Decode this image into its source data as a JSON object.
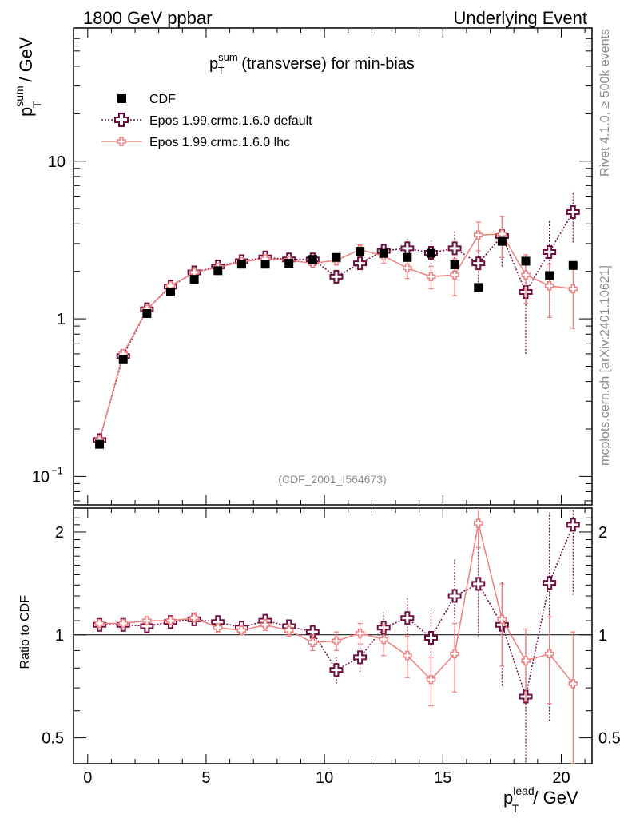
{
  "header": {
    "left": "1800 GeV ppbar",
    "right": "Underlying Event"
  },
  "side_labels": {
    "rivet": "Rivet 4.1.0, ≥ 500k events",
    "mcplots": "mcplots.cern.ch [arXiv:2401.10621]"
  },
  "chart_data": {
    "type": "scatter",
    "title_main": "p",
    "title_sup": "sum",
    "title_sub": "T",
    "title_rest": " (transverse) for min-bias",
    "analysis_label": "(CDF_2001_I564673)",
    "ylabel": {
      "main": "p",
      "sup": "sum",
      "sub": "T",
      "rest": " / GeV"
    },
    "xlabel": {
      "main": "p",
      "sup": "lead",
      "sub": "T",
      "rest": " / GeV"
    },
    "ratio_ylabel": "Ratio to CDF",
    "xlim": [
      -0.6,
      21.3
    ],
    "ylim": [
      0.066,
      70
    ],
    "ratio_ylim": [
      0.42,
      2.35
    ],
    "x_ticks": [
      "0",
      "5",
      "10",
      "15",
      "20"
    ],
    "y_ticks": [
      {
        "value": 10,
        "label": "10"
      },
      {
        "value": 1,
        "label": "1"
      },
      {
        "value": 0.1,
        "label": "10",
        "sup": "−1"
      }
    ],
    "ratio_ticks": [
      {
        "value": 2,
        "label": "2"
      },
      {
        "value": 1,
        "label": "1"
      },
      {
        "value": 0.5,
        "label": "0.5"
      }
    ],
    "legend": [
      {
        "name": "CDF",
        "style": "square"
      },
      {
        "name": "Epos 1.99.crmc.1.6.0 default",
        "style": "cross-dotted"
      },
      {
        "name": "Epos 1.99.crmc.1.6.0 lhc",
        "style": "line-cross"
      }
    ],
    "colors": {
      "data": "#000000",
      "default": "#6e0f40",
      "lhc": "#f07e7e"
    },
    "x": [
      0.5,
      1.5,
      2.5,
      3.5,
      4.5,
      5.5,
      6.5,
      7.5,
      8.5,
      9.5,
      10.5,
      11.5,
      12.5,
      13.5,
      14.5,
      15.5,
      16.5,
      17.5,
      18.5,
      19.5,
      20.5
    ],
    "cdf": [
      0.16,
      0.55,
      1.08,
      1.48,
      1.78,
      2.02,
      2.22,
      2.22,
      2.25,
      2.38,
      2.45,
      2.68,
      2.6,
      2.45,
      2.6,
      2.2,
      1.58,
      3.1,
      2.32,
      1.88,
      2.18
    ],
    "series": [
      {
        "name": "Epos 1.99.crmc.1.6.0 default",
        "values": [
          0.17,
          0.58,
          1.15,
          1.6,
          1.97,
          2.15,
          2.32,
          2.45,
          2.38,
          2.38,
          1.85,
          2.25,
          2.7,
          2.8,
          2.62,
          2.8,
          2.25,
          3.35,
          1.48,
          2.65,
          4.75
        ],
        "err_lo": [
          0.004,
          0.01,
          0.02,
          0.03,
          0.04,
          0.05,
          0.06,
          0.08,
          0.1,
          0.12,
          0.16,
          0.2,
          0.3,
          0.4,
          0.5,
          0.8,
          0.7,
          1.2,
          0.88,
          1.6,
          1.7
        ],
        "err_hi": [
          0.004,
          0.01,
          0.02,
          0.03,
          0.04,
          0.05,
          0.06,
          0.08,
          0.1,
          0.12,
          0.16,
          0.2,
          0.3,
          0.4,
          0.5,
          0.8,
          0.7,
          1.2,
          0.88,
          1.6,
          1.7
        ],
        "ratio": [
          1.07,
          1.07,
          1.06,
          1.09,
          1.11,
          1.09,
          1.05,
          1.1,
          1.06,
          1.02,
          0.79,
          0.86,
          1.05,
          1.12,
          0.98,
          1.3,
          1.41,
          1.07,
          0.66,
          1.42,
          2.1
        ],
        "ratio_err": [
          0.02,
          0.02,
          0.02,
          0.02,
          0.02,
          0.03,
          0.03,
          0.04,
          0.04,
          0.05,
          0.07,
          0.08,
          0.12,
          0.16,
          0.2,
          0.36,
          0.42,
          0.36,
          0.36,
          0.86,
          0.79
        ]
      },
      {
        "name": "Epos 1.99.crmc.1.6.0 lhc",
        "values": [
          0.17,
          0.6,
          1.15,
          1.62,
          1.97,
          2.12,
          2.3,
          2.4,
          2.35,
          2.25,
          2.35,
          2.75,
          2.5,
          2.1,
          1.85,
          1.9,
          3.4,
          3.45,
          1.9,
          1.62,
          1.55
        ],
        "err_lo": [
          0.004,
          0.01,
          0.02,
          0.03,
          0.04,
          0.05,
          0.06,
          0.08,
          0.1,
          0.12,
          0.16,
          0.2,
          0.25,
          0.3,
          0.3,
          0.5,
          0.7,
          1.0,
          0.65,
          0.6,
          0.68
        ],
        "err_hi": [
          0.004,
          0.01,
          0.02,
          0.03,
          0.04,
          0.05,
          0.06,
          0.08,
          0.1,
          0.12,
          0.16,
          0.2,
          0.25,
          0.3,
          0.3,
          0.5,
          0.7,
          1.0,
          0.65,
          0.6,
          0.68
        ],
        "ratio": [
          1.08,
          1.08,
          1.1,
          1.1,
          1.12,
          1.05,
          1.03,
          1.07,
          1.03,
          0.95,
          0.96,
          1.01,
          0.97,
          0.87,
          0.74,
          0.88,
          2.12,
          1.11,
          0.84,
          0.88,
          0.72
        ],
        "ratio_err": [
          0.02,
          0.02,
          0.02,
          0.02,
          0.02,
          0.03,
          0.03,
          0.04,
          0.04,
          0.05,
          0.06,
          0.07,
          0.1,
          0.12,
          0.12,
          0.2,
          0.32,
          0.3,
          0.2,
          0.25,
          0.3
        ]
      }
    ]
  }
}
